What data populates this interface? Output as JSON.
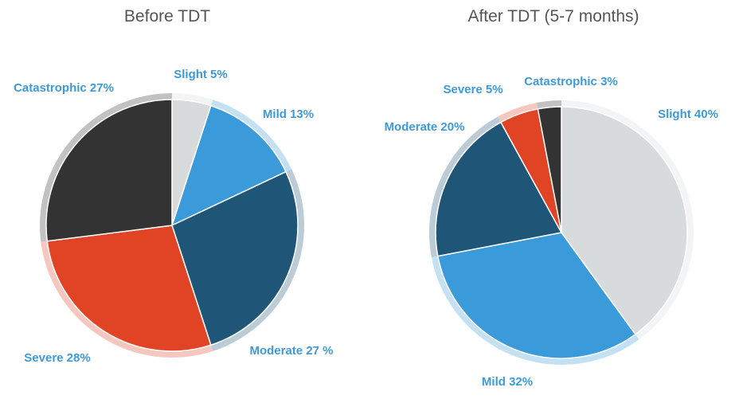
{
  "chart_data": [
    {
      "type": "pie",
      "title": "Before TDT",
      "slices": [
        {
          "label": "Slight 5%",
          "value": 5,
          "color": "#d7dbdc"
        },
        {
          "label": "Mild 13%",
          "value": 13,
          "color": "#3b9ad9"
        },
        {
          "label": "Moderate 27 %",
          "value": 27,
          "color": "#1f5577"
        },
        {
          "label": "Severe 28%",
          "value": 28,
          "color": "#e04425"
        },
        {
          "label": "Catastrophic 27%",
          "value": 27,
          "color": "#333333"
        }
      ]
    },
    {
      "type": "pie",
      "title": "After TDT (5-7 months)",
      "slices": [
        {
          "label": "Slight 40%",
          "value": 40,
          "color": "#d7dbdc"
        },
        {
          "label": "Mild 32%",
          "value": 32,
          "color": "#3b9ad9"
        },
        {
          "label": "Moderate 20%",
          "value": 20,
          "color": "#1f5577"
        },
        {
          "label": "Severe 5%",
          "value": 5,
          "color": "#e04425"
        },
        {
          "label": "Catastrophic 3%",
          "value": 3,
          "color": "#333333"
        }
      ]
    }
  ]
}
